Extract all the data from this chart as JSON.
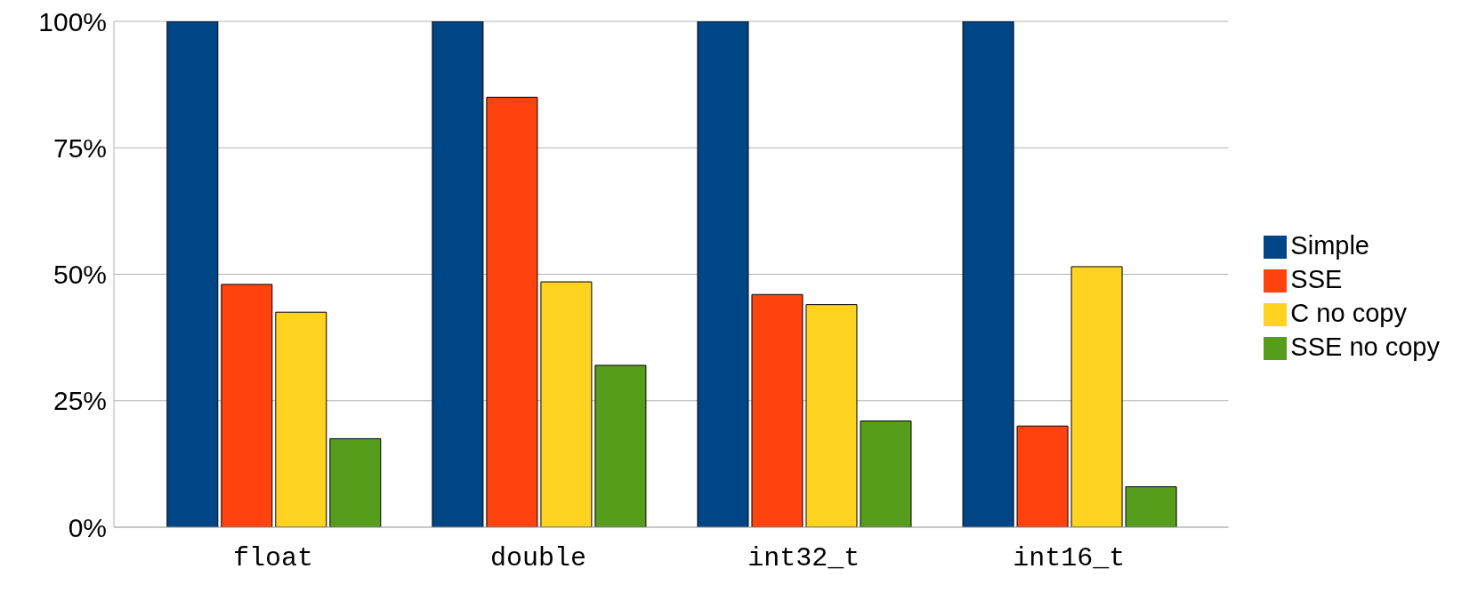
{
  "chart_data": {
    "type": "bar",
    "categories": [
      "float",
      "double",
      "int32_t",
      "int16_t"
    ],
    "series": [
      {
        "name": "Simple",
        "color": "#004586",
        "values": [
          100,
          100,
          100,
          100
        ]
      },
      {
        "name": "SSE",
        "color": "#ff420e",
        "values": [
          48,
          85,
          46,
          20
        ]
      },
      {
        "name": "C no copy",
        "color": "#ffd320",
        "values": [
          42.5,
          48.5,
          44,
          51.5
        ]
      },
      {
        "name": "SSE no copy",
        "color": "#579d1c",
        "values": [
          17.5,
          32,
          21,
          8
        ]
      }
    ],
    "ylim": [
      0,
      100
    ],
    "yticks": [
      {
        "value": 0,
        "label": "0%"
      },
      {
        "value": 25,
        "label": "25%"
      },
      {
        "value": 50,
        "label": "50%"
      },
      {
        "value": 75,
        "label": "75%"
      },
      {
        "value": 100,
        "label": "100%"
      }
    ],
    "grid": "y",
    "legend": "right"
  }
}
